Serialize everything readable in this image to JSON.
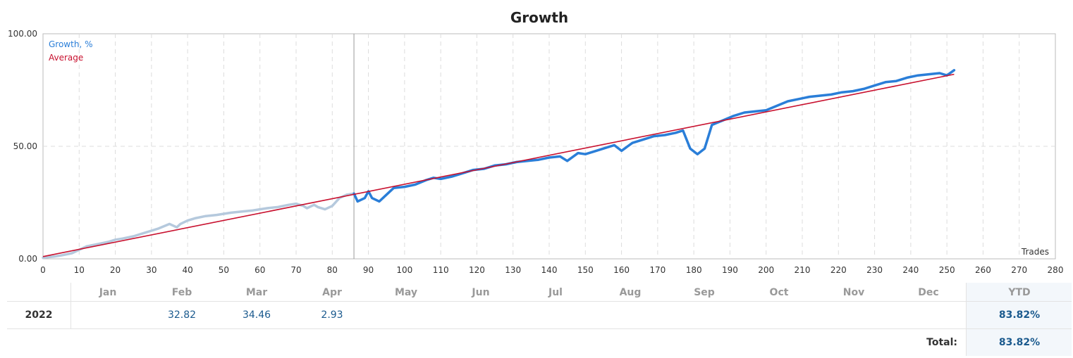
{
  "chart_data": {
    "type": "line",
    "title": "Growth",
    "xlabel": "Trades",
    "ylabel": "",
    "xlim": [
      0,
      280
    ],
    "ylim": [
      0,
      100
    ],
    "x_ticks": [
      0,
      10,
      20,
      30,
      40,
      50,
      60,
      70,
      80,
      90,
      100,
      110,
      120,
      130,
      140,
      150,
      160,
      170,
      180,
      190,
      200,
      210,
      220,
      230,
      240,
      250,
      260,
      270,
      280
    ],
    "y_ticks": [
      "0.00",
      "50.00",
      "100.00"
    ],
    "history_end_trade": 86,
    "series": [
      {
        "name": "Growth, %",
        "color": "#2a7ed8",
        "history_color": "#b5c9dd",
        "points": [
          [
            0,
            0.5
          ],
          [
            3,
            1.0
          ],
          [
            5,
            1.5
          ],
          [
            8,
            2.5
          ],
          [
            10,
            4.0
          ],
          [
            12,
            5.5
          ],
          [
            15,
            6.5
          ],
          [
            18,
            7.5
          ],
          [
            20,
            8.5
          ],
          [
            22,
            9.0
          ],
          [
            25,
            10.0
          ],
          [
            28,
            11.5
          ],
          [
            30,
            12.5
          ],
          [
            32,
            13.5
          ],
          [
            35,
            15.5
          ],
          [
            37,
            14.0
          ],
          [
            38,
            15.5
          ],
          [
            40,
            17.0
          ],
          [
            42,
            18.0
          ],
          [
            45,
            19.0
          ],
          [
            48,
            19.5
          ],
          [
            50,
            20.0
          ],
          [
            52,
            20.5
          ],
          [
            55,
            21.0
          ],
          [
            58,
            21.5
          ],
          [
            60,
            22.0
          ],
          [
            62,
            22.5
          ],
          [
            65,
            23.0
          ],
          [
            68,
            24.0
          ],
          [
            70,
            24.5
          ],
          [
            72,
            23.5
          ],
          [
            73,
            22.5
          ],
          [
            75,
            24.0
          ],
          [
            76,
            23.0
          ],
          [
            78,
            22.0
          ],
          [
            80,
            23.5
          ],
          [
            82,
            27.0
          ],
          [
            84,
            28.5
          ],
          [
            86,
            29.0
          ],
          [
            87,
            25.5
          ],
          [
            89,
            27.0
          ],
          [
            90,
            30.0
          ],
          [
            91,
            27.0
          ],
          [
            93,
            25.5
          ],
          [
            95,
            28.5
          ],
          [
            97,
            31.5
          ],
          [
            100,
            32.0
          ],
          [
            103,
            33.0
          ],
          [
            106,
            35.0
          ],
          [
            108,
            36.0
          ],
          [
            110,
            35.5
          ],
          [
            113,
            36.5
          ],
          [
            116,
            38.0
          ],
          [
            119,
            39.5
          ],
          [
            122,
            40.0
          ],
          [
            125,
            41.5
          ],
          [
            128,
            42.0
          ],
          [
            131,
            43.0
          ],
          [
            134,
            43.5
          ],
          [
            137,
            44.0
          ],
          [
            140,
            45.0
          ],
          [
            143,
            45.5
          ],
          [
            145,
            43.5
          ],
          [
            148,
            47.0
          ],
          [
            150,
            46.5
          ],
          [
            153,
            48.0
          ],
          [
            156,
            49.5
          ],
          [
            158,
            50.5
          ],
          [
            160,
            48.0
          ],
          [
            163,
            51.5
          ],
          [
            166,
            53.0
          ],
          [
            169,
            54.5
          ],
          [
            172,
            55.0
          ],
          [
            175,
            56.0
          ],
          [
            177,
            57.0
          ],
          [
            179,
            49.0
          ],
          [
            181,
            46.5
          ],
          [
            183,
            49.0
          ],
          [
            185,
            59.5
          ],
          [
            188,
            61.5
          ],
          [
            191,
            63.5
          ],
          [
            194,
            65.0
          ],
          [
            197,
            65.5
          ],
          [
            200,
            66.0
          ],
          [
            203,
            68.0
          ],
          [
            206,
            70.0
          ],
          [
            209,
            71.0
          ],
          [
            212,
            72.0
          ],
          [
            215,
            72.5
          ],
          [
            218,
            73.0
          ],
          [
            221,
            74.0
          ],
          [
            224,
            74.5
          ],
          [
            227,
            75.5
          ],
          [
            230,
            77.0
          ],
          [
            233,
            78.5
          ],
          [
            236,
            79.0
          ],
          [
            239,
            80.5
          ],
          [
            242,
            81.5
          ],
          [
            245,
            82.0
          ],
          [
            248,
            82.5
          ],
          [
            250,
            81.5
          ],
          [
            252,
            83.82
          ]
        ]
      },
      {
        "name": "Average",
        "color": "#c8102e",
        "points": [
          [
            0,
            1.0
          ],
          [
            252,
            82.0
          ]
        ]
      }
    ],
    "legend": "top-left"
  },
  "table": {
    "months": [
      "Jan",
      "Feb",
      "Mar",
      "Apr",
      "May",
      "Jun",
      "Jul",
      "Aug",
      "Sep",
      "Oct",
      "Nov",
      "Dec"
    ],
    "ytd_header": "YTD",
    "rows": [
      {
        "year": "2022",
        "values": [
          "",
          "32.82",
          "34.46",
          "2.93",
          "",
          "",
          "",
          "",
          "",
          "",
          "",
          ""
        ],
        "ytd": "83.82%"
      }
    ],
    "total_label": "Total:",
    "total_value": "83.82%"
  }
}
